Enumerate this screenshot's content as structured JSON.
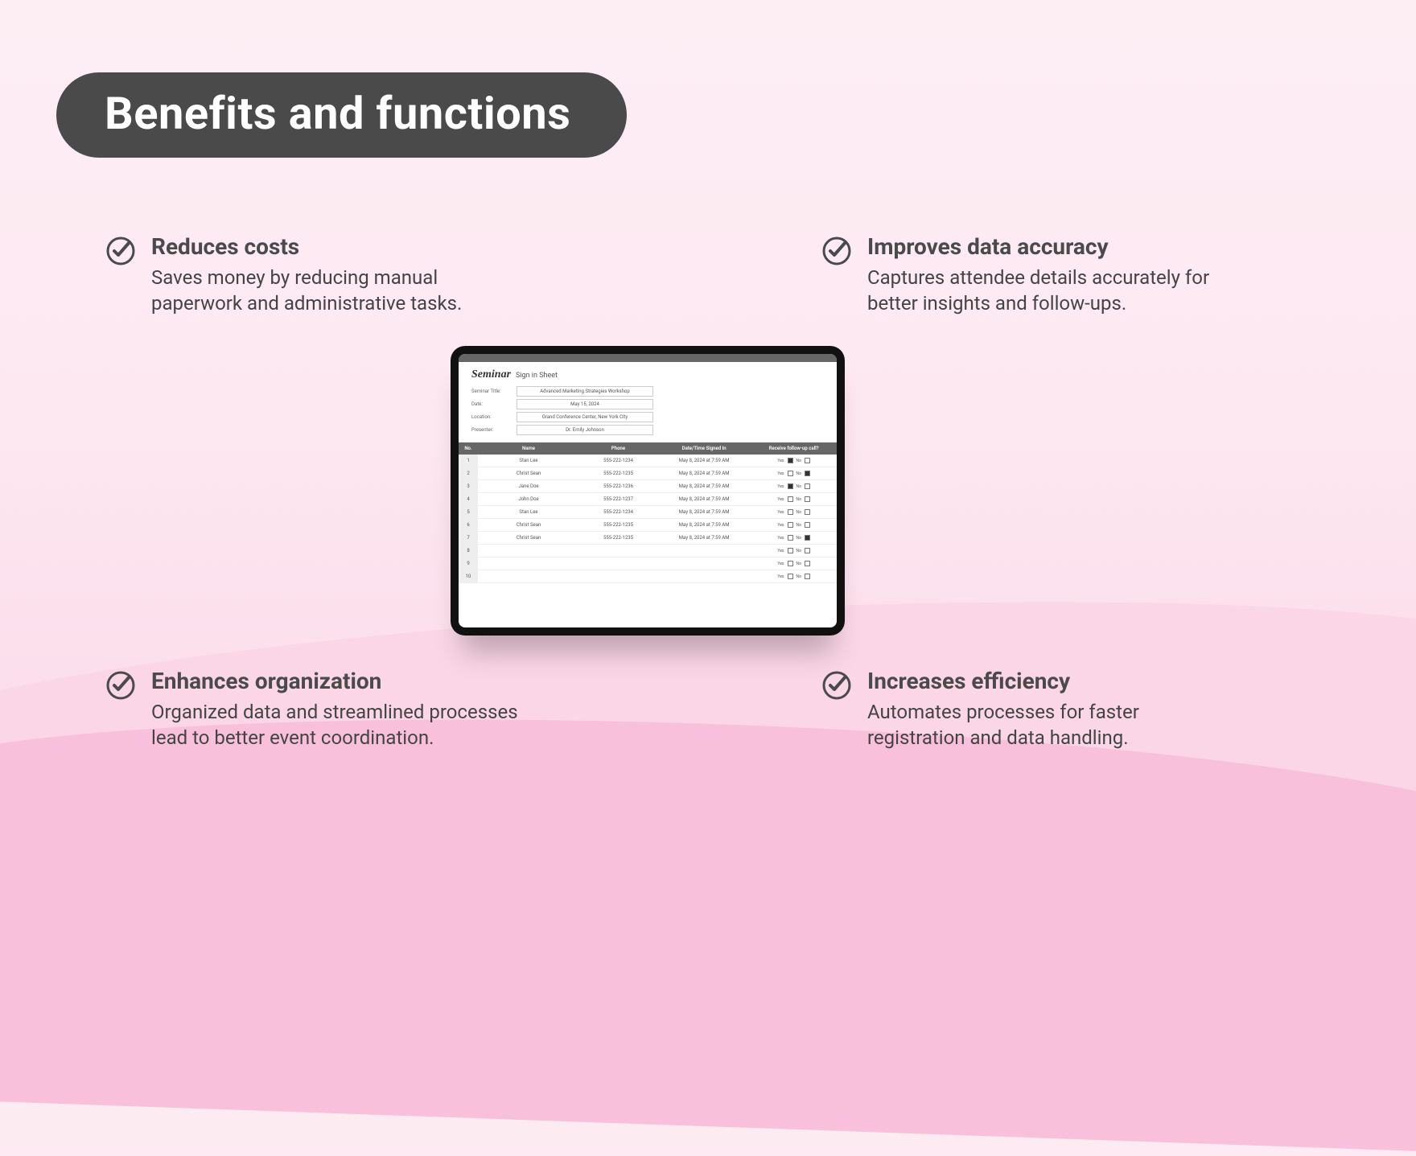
{
  "title": "Benefits and functions",
  "benefits": {
    "tl": {
      "heading": "Reduces costs",
      "body": "Saves money by reducing manual paperwork and administrative tasks."
    },
    "tr": {
      "heading": "Improves data accuracy",
      "body": "Captures attendee details accurately for better insights and follow-ups."
    },
    "bl": {
      "heading": "Enhances organization",
      "body": "Organized data and streamlined processes lead to better event coordination."
    },
    "br": {
      "heading": "Increases efficiency",
      "body": "Automates processes for faster registration and data handling."
    }
  },
  "tablet": {
    "title_script": "Seminar",
    "title_sub": "Sign in Sheet",
    "meta": {
      "seminar_title_label": "Seminar Title:",
      "seminar_title_value": "Advanced Marketing Strategies Workshop",
      "date_label": "Date:",
      "date_value": "May 15, 2024",
      "location_label": "Location:",
      "location_value": "Grand Conference Center, New York City",
      "presenter_label": "Presenter:",
      "presenter_value": "Dr. Emily Johnson"
    },
    "columns": {
      "no": "No.",
      "name": "Name",
      "phone": "Phone",
      "dt": "Date/Time Signed In",
      "follow": "Receive follow-up call?"
    },
    "opt_yes": "Yes",
    "opt_no": "No",
    "rows": [
      {
        "no": "1",
        "name": "Stan Lee",
        "phone": "555-222-1234",
        "dt": "May 8, 2024 at 7:59 AM",
        "yes": true,
        "nochk": false
      },
      {
        "no": "2",
        "name": "Christ Sean",
        "phone": "555-222-1235",
        "dt": "May 8, 2024 at 7:59 AM",
        "yes": false,
        "nochk": true
      },
      {
        "no": "3",
        "name": "Jane Doe",
        "phone": "555-222-1236",
        "dt": "May 8, 2024 at 7:59 AM",
        "yes": true,
        "nochk": false
      },
      {
        "no": "4",
        "name": "John Doe",
        "phone": "555-222-1237",
        "dt": "May 8, 2024 at 7:59 AM",
        "yes": false,
        "nochk": false
      },
      {
        "no": "5",
        "name": "Stan Lee",
        "phone": "555-222-1234",
        "dt": "May 8, 2024 at 7:59 AM",
        "yes": false,
        "nochk": false
      },
      {
        "no": "6",
        "name": "Christ Sean",
        "phone": "555-222-1235",
        "dt": "May 8, 2024 at 7:59 AM",
        "yes": false,
        "nochk": false
      },
      {
        "no": "7",
        "name": "Christ Sean",
        "phone": "555-222-1235",
        "dt": "May 8, 2024 at 7:59 AM",
        "yes": false,
        "nochk": true
      },
      {
        "no": "8",
        "name": "",
        "phone": "",
        "dt": "",
        "yes": false,
        "nochk": false
      },
      {
        "no": "9",
        "name": "",
        "phone": "",
        "dt": "",
        "yes": false,
        "nochk": false
      },
      {
        "no": "10",
        "name": "",
        "phone": "",
        "dt": "",
        "yes": false,
        "nochk": false
      }
    ]
  },
  "colors": {
    "pill_bg": "#4a4a4a",
    "text": "#4a4a4a",
    "bg_top": "#fdeef4",
    "bg_mid": "#fbd6e7",
    "bg_bot": "#f9c0db"
  }
}
